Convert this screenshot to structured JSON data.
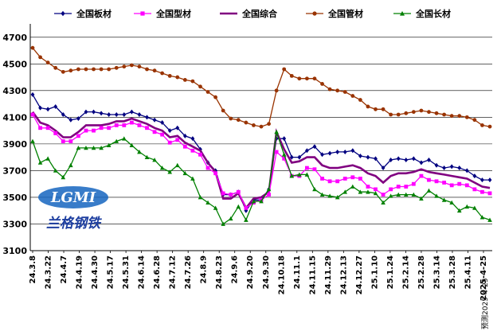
{
  "chart_data": {
    "type": "line",
    "title": "",
    "xlabel": "",
    "ylabel": "",
    "ylim": [
      3100,
      4800
    ],
    "yticks": [
      3100,
      3300,
      3500,
      3700,
      3900,
      4100,
      4300,
      4500,
      4700
    ],
    "grid": true,
    "legend": "top",
    "x_tick_labels": [
      "24.3.8",
      "24.3.22",
      "24.4.7",
      "24.4.19",
      "24.4.30",
      "24.5.17",
      "24.5.31",
      "24.6.14",
      "24.6.28",
      "24.7.12",
      "24.7.26",
      "24.8.9",
      "24.8.23",
      "24.9.6",
      "24.9.20",
      "24.9.30",
      "24.10.18",
      "24.11.1",
      "24.11.15",
      "24.11.29",
      "24.12.13",
      "24.12.27",
      "25.1.10",
      "25.1.24",
      "25.2.14",
      "25.2.28",
      "25.3.14",
      "25.3.28",
      "25.4.11",
      "2025-4-25"
    ],
    "series": [
      {
        "name": "全国板材",
        "color": "#000080",
        "marker": "diamond",
        "values": [
          4270,
          4170,
          4160,
          4180,
          4120,
          4080,
          4090,
          4140,
          4140,
          4130,
          4120,
          4120,
          4120,
          4140,
          4120,
          4100,
          4080,
          4060,
          4000,
          4020,
          3960,
          3940,
          3860,
          3760,
          3700,
          3520,
          3520,
          3540,
          3400,
          3480,
          3480,
          3560,
          3940,
          3940,
          3800,
          3800,
          3850,
          3880,
          3820,
          3830,
          3840,
          3840,
          3850,
          3810,
          3800,
          3790,
          3720,
          3780,
          3790,
          3780,
          3790,
          3760,
          3780,
          3740,
          3720,
          3730,
          3720,
          3700,
          3660,
          3630,
          3630
        ]
      },
      {
        "name": "全国型材",
        "color": "#ff00ff",
        "marker": "square",
        "values": [
          4120,
          4020,
          4020,
          3980,
          3920,
          3920,
          3960,
          4000,
          4000,
          4020,
          4020,
          4040,
          4040,
          4060,
          4040,
          4020,
          3990,
          3970,
          3910,
          3930,
          3880,
          3850,
          3820,
          3720,
          3680,
          3530,
          3520,
          3540,
          3420,
          3460,
          3480,
          3520,
          3840,
          3790,
          3660,
          3660,
          3720,
          3710,
          3640,
          3620,
          3620,
          3640,
          3650,
          3640,
          3580,
          3560,
          3520,
          3560,
          3580,
          3580,
          3600,
          3660,
          3630,
          3620,
          3610,
          3590,
          3600,
          3590,
          3560,
          3540,
          3530
        ]
      },
      {
        "name": "全国综合",
        "color": "#800080",
        "marker": "none",
        "values": [
          4140,
          4060,
          4040,
          4000,
          3950,
          3950,
          3990,
          4040,
          4040,
          4040,
          4050,
          4070,
          4070,
          4090,
          4070,
          4050,
          4020,
          4000,
          3950,
          3960,
          3910,
          3880,
          3850,
          3760,
          3690,
          3490,
          3490,
          3530,
          3420,
          3490,
          3500,
          3540,
          3990,
          3860,
          3760,
          3770,
          3800,
          3800,
          3740,
          3720,
          3720,
          3730,
          3740,
          3720,
          3680,
          3660,
          3610,
          3660,
          3680,
          3680,
          3690,
          3710,
          3690,
          3680,
          3670,
          3660,
          3650,
          3640,
          3610,
          3580,
          3570
        ]
      },
      {
        "name": "全国管材",
        "color": "#993300",
        "marker": "circle",
        "values": [
          4620,
          4550,
          4510,
          4470,
          4440,
          4450,
          4460,
          4460,
          4460,
          4460,
          4460,
          4470,
          4480,
          4490,
          4480,
          4460,
          4450,
          4430,
          4410,
          4400,
          4380,
          4370,
          4330,
          4290,
          4250,
          4150,
          4090,
          4080,
          4060,
          4040,
          4030,
          4050,
          4300,
          4460,
          4410,
          4390,
          4390,
          4390,
          4350,
          4310,
          4300,
          4290,
          4260,
          4230,
          4180,
          4160,
          4160,
          4120,
          4120,
          4130,
          4140,
          4150,
          4140,
          4130,
          4120,
          4110,
          4110,
          4100,
          4080,
          4040,
          4030
        ]
      },
      {
        "name": "全国长材",
        "color": "#008000",
        "marker": "triangle",
        "values": [
          3920,
          3760,
          3790,
          3700,
          3650,
          3740,
          3870,
          3870,
          3870,
          3870,
          3890,
          3920,
          3940,
          3890,
          3840,
          3800,
          3780,
          3720,
          3690,
          3740,
          3680,
          3640,
          3500,
          3460,
          3420,
          3300,
          3340,
          3430,
          3330,
          3470,
          3470,
          3560,
          3990,
          3820,
          3660,
          3670,
          3670,
          3560,
          3520,
          3510,
          3500,
          3540,
          3580,
          3540,
          3540,
          3530,
          3460,
          3510,
          3520,
          3520,
          3520,
          3490,
          3550,
          3510,
          3480,
          3460,
          3400,
          3430,
          3420,
          3350,
          3330
        ]
      }
    ]
  },
  "logo": {
    "mark": "LGMI",
    "name": "兰格钢铁"
  },
  "note": "预测2025-4-25"
}
